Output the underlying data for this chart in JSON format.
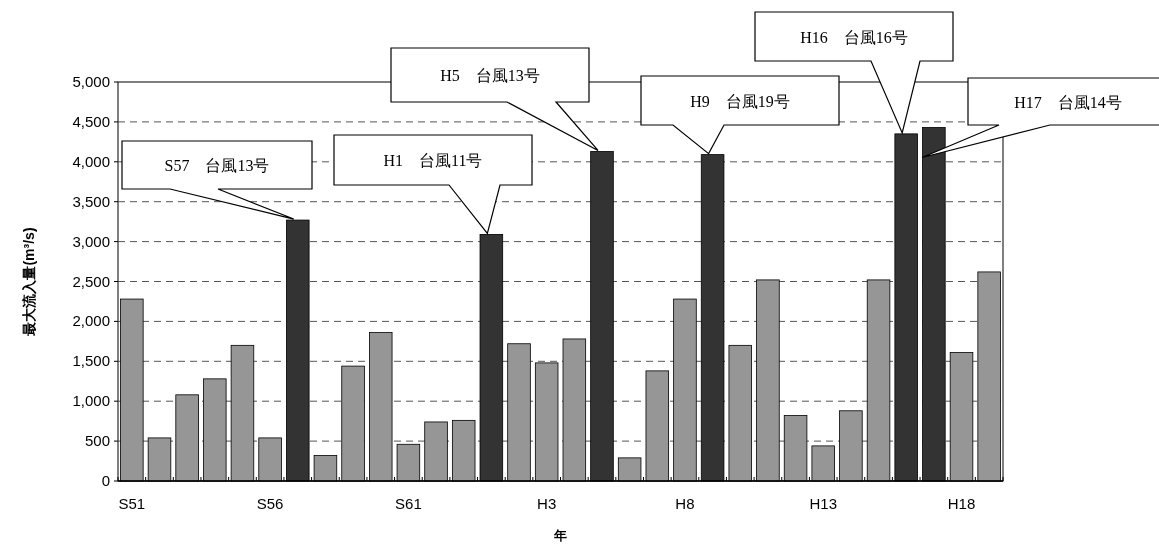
{
  "chart_data": {
    "type": "bar",
    "xlabel": "年",
    "ylabel": "最大流入量(m³/s)",
    "categories": [
      "S51",
      null,
      null,
      null,
      null,
      "S56",
      null,
      null,
      null,
      null,
      "S61",
      null,
      null,
      null,
      null,
      "H3",
      null,
      null,
      null,
      null,
      "H8",
      null,
      null,
      null,
      null,
      "H13",
      null,
      null,
      null,
      null,
      "H18",
      null
    ],
    "values": [
      2280,
      540,
      1080,
      1280,
      1700,
      540,
      3270,
      320,
      1440,
      1860,
      460,
      740,
      760,
      3090,
      1720,
      1480,
      1780,
      4130,
      290,
      1380,
      2280,
      4090,
      1700,
      2520,
      820,
      440,
      880,
      2520,
      4350,
      4430,
      1610,
      2620
    ],
    "colors": [
      "#969696",
      "#969696",
      "#969696",
      "#969696",
      "#969696",
      "#969696",
      "#333333",
      "#969696",
      "#969696",
      "#969696",
      "#969696",
      "#969696",
      "#969696",
      "#333333",
      "#969696",
      "#969696",
      "#969696",
      "#333333",
      "#969696",
      "#969696",
      "#969696",
      "#333333",
      "#969696",
      "#969696",
      "#969696",
      "#969696",
      "#969696",
      "#969696",
      "#333333",
      "#333333",
      "#969696",
      "#969696"
    ],
    "ylim": [
      0,
      5000
    ],
    "yticks": [
      0,
      500,
      {
        "value": 1000,
        "label": "1,000"
      },
      {
        "value": 1500,
        "label": "1,500"
      },
      {
        "value": 2000,
        "label": "2,000"
      },
      {
        "value": 2500,
        "label": "2,500"
      },
      {
        "value": 3000,
        "label": "3,000"
      },
      {
        "value": 3500,
        "label": "3,500"
      },
      {
        "value": 4000,
        "label": "4,000"
      },
      {
        "value": 4500,
        "label": "4,500"
      },
      {
        "value": 5000,
        "label": "5,000"
      }
    ],
    "grid": "y",
    "annotations": [
      "S57　台風13号",
      "H1　台風11号",
      "H5　台風13号",
      "H9　台風19号",
      "H16　台風16号",
      "H17　台風14号"
    ]
  }
}
